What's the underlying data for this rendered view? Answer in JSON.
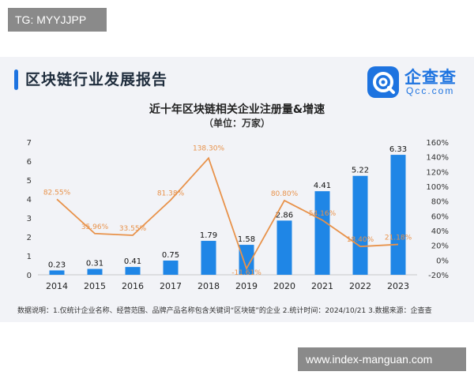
{
  "watermark_top": "TG: MYYJJPP",
  "watermark_bottom": "www.index-manguan.com",
  "report_title": "区块链行业发展报告",
  "logo": {
    "name_cn": "企查查",
    "name_en": "Qcc.com",
    "icon": "qcc-logo-icon"
  },
  "footnote": "数据说明：1.仅统计企业名称、经营范围、品牌产品名称包含关键词“区块链”的企业  2.统计时间：2024/10/21  3.数据来源：企查查",
  "colors": {
    "bar": "#1f86e6",
    "line": "#e8924a",
    "accent": "#1d73e0",
    "card_bg": "#f2f3f7"
  },
  "chart_data": {
    "type": "bar",
    "title": "近十年区块链相关企业注册量&增速",
    "subtitle": "（单位：万家）",
    "categories": [
      "2014",
      "2015",
      "2016",
      "2017",
      "2018",
      "2019",
      "2020",
      "2021",
      "2022",
      "2023"
    ],
    "series": [
      {
        "type": "bar",
        "axis": "left",
        "values": [
          0.23,
          0.31,
          0.41,
          0.75,
          1.79,
          1.58,
          2.86,
          4.41,
          5.22,
          6.33
        ],
        "labels": [
          "0.23",
          "0.31",
          "0.41",
          "0.75",
          "1.79",
          "1.58",
          "2.86",
          "4.41",
          "5.22",
          "6.33"
        ]
      },
      {
        "type": "line",
        "axis": "right",
        "values": [
          82.55,
          35.96,
          33.55,
          81.38,
          138.3,
          -11.61,
          80.8,
          54.16,
          18.4,
          21.18
        ],
        "labels": [
          "82.55%",
          "35.96%",
          "33.55%",
          "81.38%",
          "138.30%",
          "-11.61%",
          "80.80%",
          "54.16%",
          "18.40%",
          "21.18%"
        ]
      }
    ],
    "y_left": {
      "ticks": [
        "0",
        "1",
        "2",
        "3",
        "4",
        "5",
        "6",
        "7"
      ],
      "range": [
        0,
        7
      ]
    },
    "y_right": {
      "ticks": [
        "-20%",
        "0%",
        "20%",
        "40%",
        "60%",
        "80%",
        "100%",
        "120%",
        "140%",
        "160%"
      ],
      "range": [
        -20,
        160
      ]
    },
    "grid": false
  }
}
